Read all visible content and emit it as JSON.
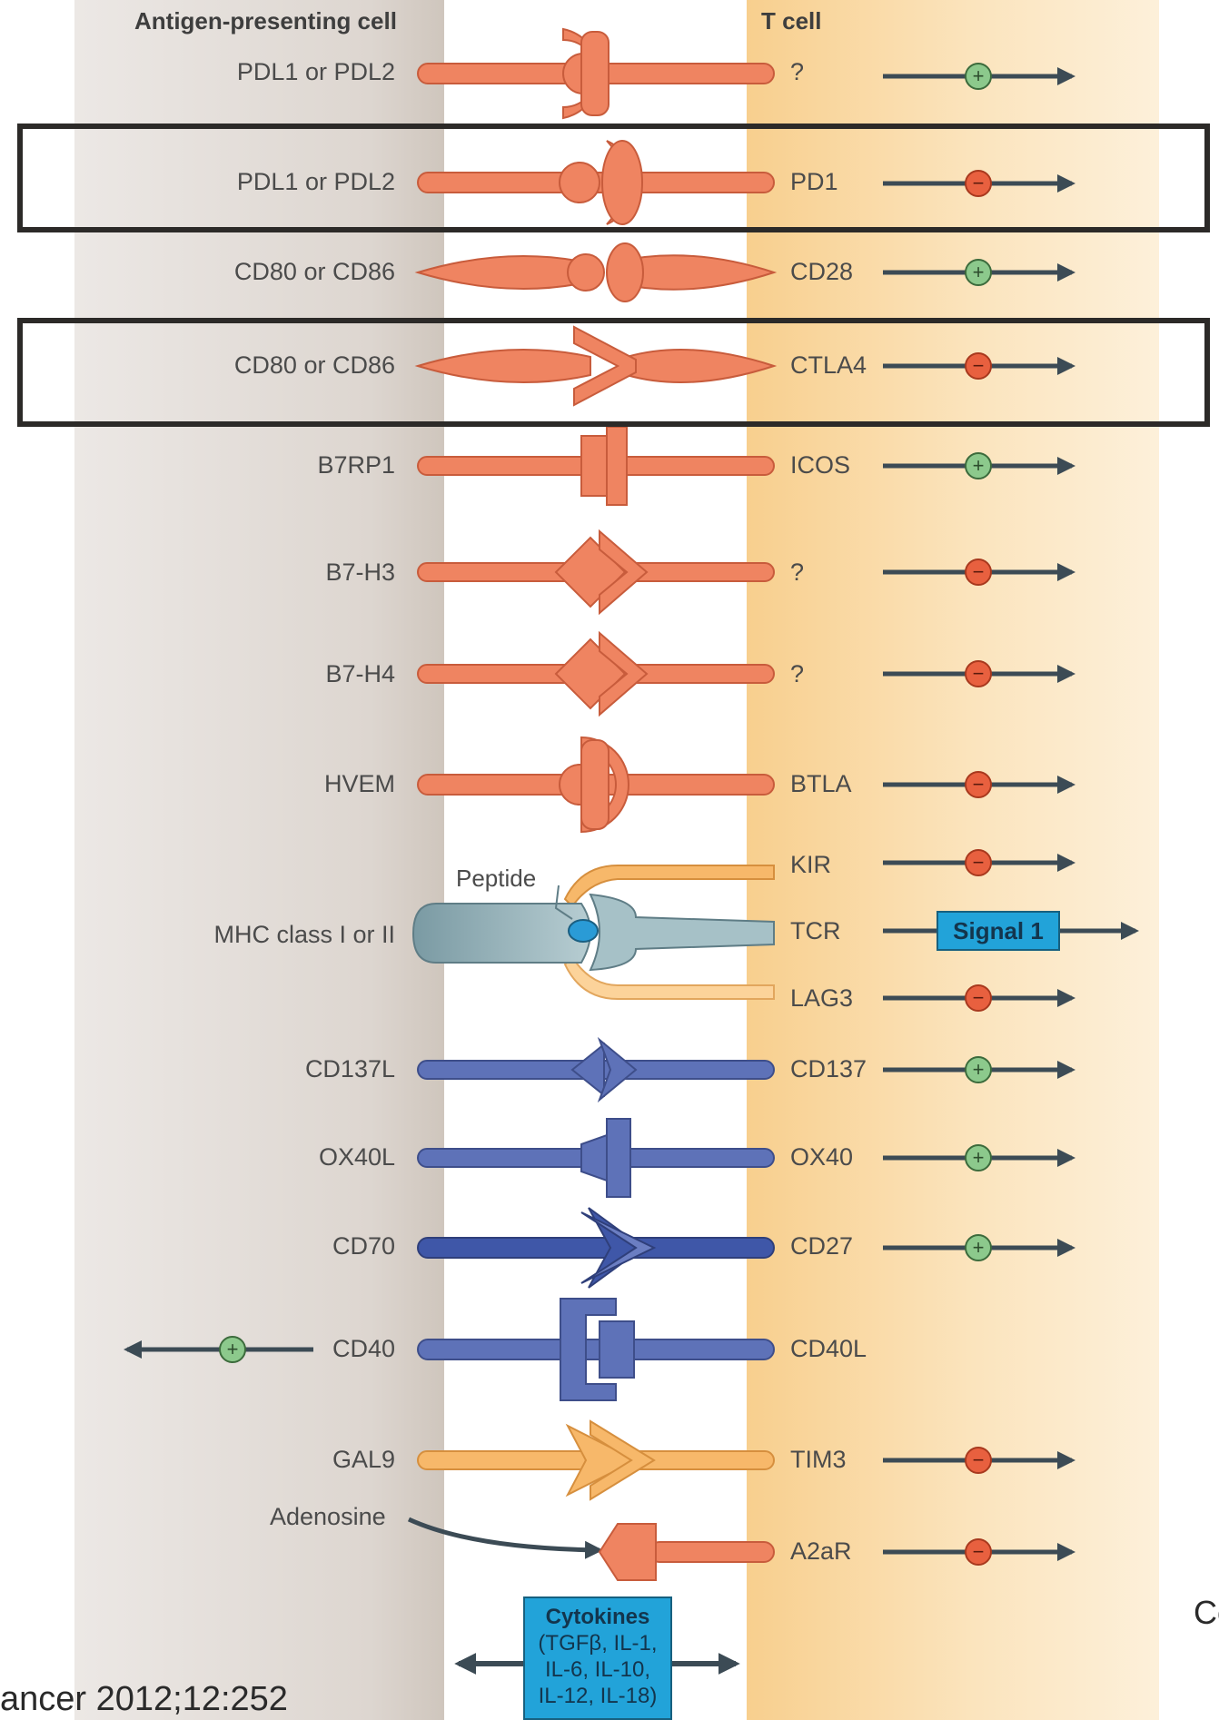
{
  "headers": {
    "apc": "Antigen-presenting cell",
    "tcell": "T cell"
  },
  "pairs": [
    {
      "left": "PDL1 or PDL2",
      "right": "?",
      "signal": "+"
    },
    {
      "left": "PDL1 or PDL2",
      "right": "PD1",
      "signal": "-",
      "highlighted": true
    },
    {
      "left": "CD80 or CD86",
      "right": "CD28",
      "signal": "+"
    },
    {
      "left": "CD80 or CD86",
      "right": "CTLA4",
      "signal": "-",
      "highlighted": true
    },
    {
      "left": "B7RP1",
      "right": "ICOS",
      "signal": "+"
    },
    {
      "left": "B7-H3",
      "right": "?",
      "signal": "-"
    },
    {
      "left": "B7-H4",
      "right": "?",
      "signal": "-"
    },
    {
      "left": "HVEM",
      "right": "BTLA",
      "signal": "-"
    },
    {
      "left": "",
      "right": "KIR",
      "signal": "-"
    },
    {
      "left": "MHC class I or II",
      "right": "TCR",
      "signal": "Signal 1"
    },
    {
      "left": "",
      "right": "LAG3",
      "signal": "-"
    },
    {
      "left": "CD137L",
      "right": "CD137",
      "signal": "+"
    },
    {
      "left": "OX40L",
      "right": "OX40",
      "signal": "+"
    },
    {
      "left": "CD70",
      "right": "CD27",
      "signal": "+"
    },
    {
      "left": "CD40",
      "right": "CD40L",
      "signal": "+ (to APC)"
    },
    {
      "left": "GAL9",
      "right": "TIM3",
      "signal": "-"
    },
    {
      "left": "Adenosine",
      "right": "A2aR",
      "signal": "-"
    }
  ],
  "labels": {
    "peptide": "Peptide",
    "signal1": "Signal 1",
    "cytokines_title": "Cytokines",
    "cytokines_list": [
      "(TGFβ, IL-1,",
      "IL-6, IL-10,",
      "IL-12, IL-18)"
    ]
  },
  "citation_left": "ancer 2012;12:252",
  "citation_right": "Co",
  "colors": {
    "orange": "#ef8461",
    "blue": "#5e72b8",
    "teal": "#8fb0b8",
    "lightorange": "#f7b86a",
    "plus": "#8cc98c",
    "minus": "#e8603f",
    "arrow": "#3c4b55"
  }
}
